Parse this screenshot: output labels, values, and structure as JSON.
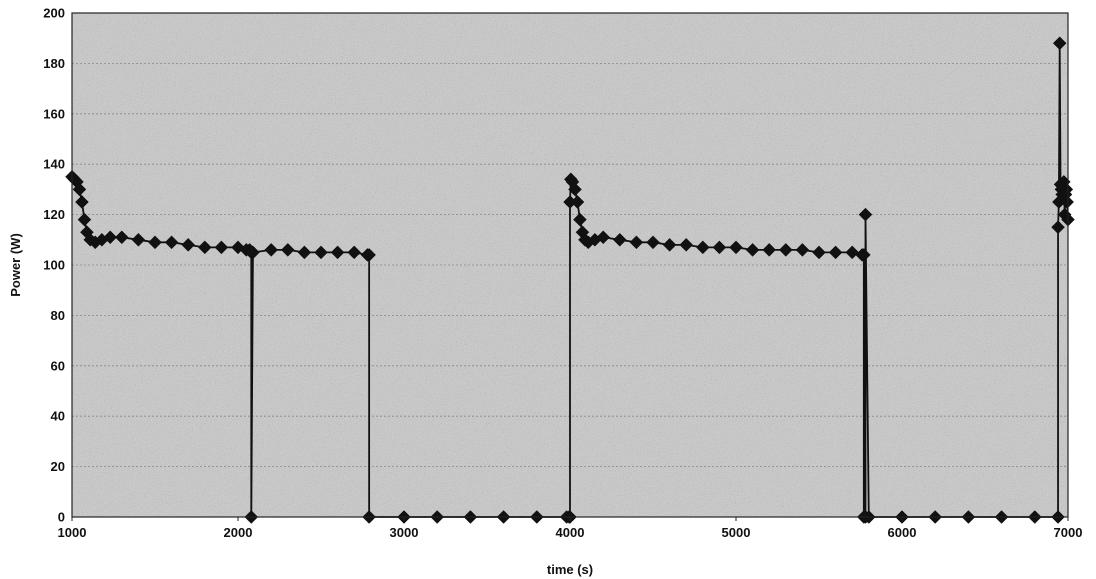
{
  "chart_data": {
    "type": "line",
    "title": "",
    "xlabel": "time (s)",
    "ylabel": "Power (W)",
    "xlim": [
      1000,
      7000
    ],
    "ylim": [
      0,
      200
    ],
    "x_ticks": [
      "1000",
      "2000",
      "3000",
      "4000",
      "5000",
      "6000",
      "7000"
    ],
    "y_ticks": [
      "0",
      "20",
      "40",
      "60",
      "80",
      "100",
      "120",
      "140",
      "160",
      "180",
      "200"
    ],
    "grid": "horizontal",
    "legend": "none",
    "colors": {
      "plot_background": "#c9c9c9",
      "series": "#111111",
      "text": "#111111"
    },
    "series": [
      {
        "x": [
          1000,
          1015,
          1030,
          1045,
          1060,
          1075,
          1090,
          1110,
          1140,
          1180,
          1230,
          1300,
          1400,
          1500,
          1600,
          1700,
          1800,
          1900,
          2000,
          2050,
          2070,
          2080,
          2080,
          2090,
          2200,
          2300,
          2400,
          2500,
          2600,
          2700,
          2780,
          2790,
          2790,
          3000,
          3200,
          3400,
          3600,
          3800,
          3980,
          3995,
          4000,
          4000,
          4005,
          4015,
          4030,
          4045,
          4060,
          4075,
          4090,
          4110,
          4150,
          4200,
          4300,
          4400,
          4500,
          4600,
          4700,
          4800,
          4900,
          5000,
          5100,
          5200,
          5300,
          5400,
          5500,
          5600,
          5700,
          5760,
          5770,
          5770,
          5780,
          5780,
          5800,
          6000,
          6200,
          6400,
          6600,
          6800,
          6940,
          6940,
          6945,
          6950,
          6955,
          6960,
          6965,
          6970,
          6975,
          6980,
          6985,
          6990,
          6995,
          7000
        ],
        "y": [
          135,
          134,
          133,
          130,
          125,
          118,
          113,
          110,
          109,
          110,
          111,
          111,
          110,
          109,
          109,
          108,
          107,
          107,
          107,
          106,
          106,
          105,
          0,
          105,
          106,
          106,
          105,
          105,
          105,
          105,
          104,
          104,
          0,
          0,
          0,
          0,
          0,
          0,
          0,
          0,
          0,
          125,
          134,
          133,
          130,
          125,
          118,
          113,
          110,
          109,
          110,
          111,
          110,
          109,
          109,
          108,
          108,
          107,
          107,
          107,
          106,
          106,
          106,
          106,
          105,
          105,
          105,
          104,
          104,
          0,
          0,
          120,
          0,
          0,
          0,
          0,
          0,
          0,
          0,
          115,
          125,
          188,
          132,
          130,
          128,
          131,
          133,
          120,
          128,
          130,
          125,
          118
        ]
      }
    ]
  }
}
